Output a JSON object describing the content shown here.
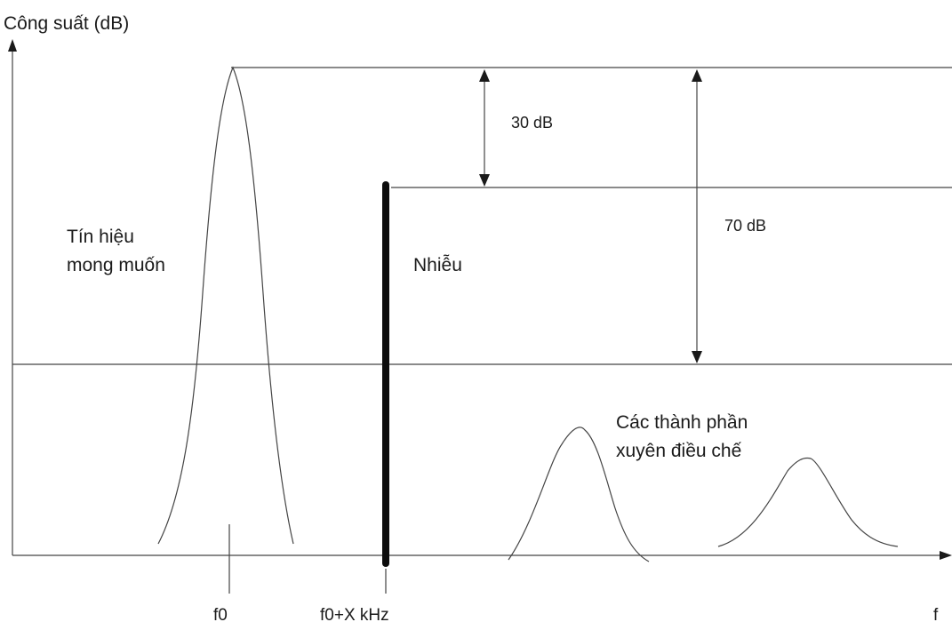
{
  "axes": {
    "y_label": "Công suất (dB)",
    "x_label": "f"
  },
  "labels": {
    "desired_signal_line1": "Tín hiệu",
    "desired_signal_line2": "mong muốn",
    "interference": "Nhiễu",
    "intermod_line1": "Các thành phần",
    "intermod_line2": "xuyên điều chế"
  },
  "dimensions": {
    "gap_small": "30 dB",
    "gap_large": "70 dB"
  },
  "ticks": {
    "f0": "f0",
    "f0_plus_x": "f0+X kHz"
  },
  "colors": {
    "ink": "#1a1a1a",
    "thin_line": "#444444",
    "background": "#ffffff"
  }
}
